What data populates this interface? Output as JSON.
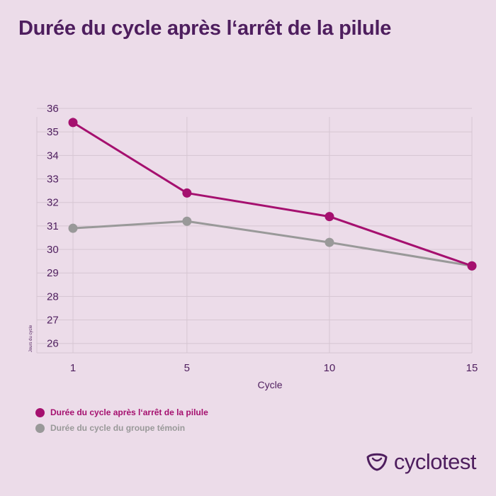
{
  "title": "Durée du cycle après l‘arrêt de la pilule",
  "brand": {
    "name": "cyclotest",
    "logo_icon": "cyclotest-logo-icon"
  },
  "colors": {
    "background": "#ecdce9",
    "title": "#4e1e5e",
    "series_pill": "#a5106f",
    "series_control": "#999999",
    "grid": "#d6c6d2"
  },
  "chart_data": {
    "type": "line",
    "title": "Durée du cycle après l‘arrêt de la pilule",
    "xlabel": "Cycle",
    "ylabel": "Jours du cycle",
    "x": [
      1,
      5,
      10,
      15
    ],
    "x_tick_labels": [
      "1",
      "5",
      "10",
      "15"
    ],
    "y_ticks": [
      36,
      35,
      34,
      33,
      32,
      31,
      30,
      29,
      28,
      27,
      26
    ],
    "ylim": [
      25.6,
      36
    ],
    "grid": true,
    "legend_position": "bottom-left",
    "series": [
      {
        "name": "Durée du cycle après l‘arrêt de la pilule",
        "color": "#a5106f",
        "values": [
          35.4,
          32.4,
          31.4,
          29.3
        ]
      },
      {
        "name": "Durée du cycle du groupe témoin",
        "color": "#999999",
        "values": [
          30.9,
          31.2,
          30.3,
          29.3
        ]
      }
    ]
  }
}
